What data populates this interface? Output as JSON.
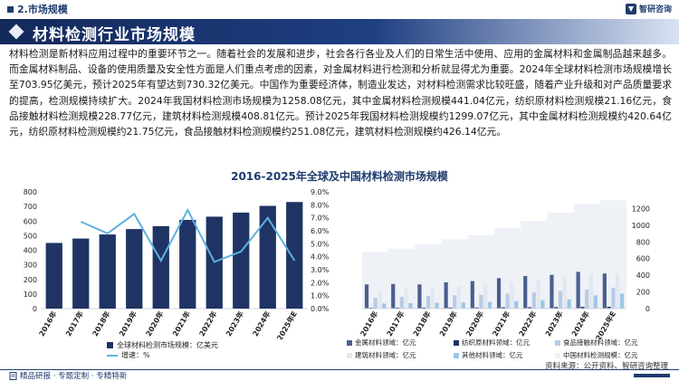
{
  "header": {
    "section": "2.市场规模",
    "logo_text": "智研咨询",
    "title": "材料检测行业市场规模"
  },
  "body_text": "材料检测是新材料应用过程中的重要环节之一。随着社会的发展和进步，社会各行各业及人们的日常生活中使用、应用的金属材料和金属制品越来越多。而金属材料制品、设备的使用质量及安全性方面是人们重点考虑的因素，对金属材料进行检测和分析就显得尤为重要。2024年全球材料检测市场规模增长至703.95亿美元，预计2025年有望达到730.32亿美元。中国作为重要经济体，制造业发达，对材料检测需求比较旺盛，随着产业升级和对产品质量要求的提高，检测规模持续扩大。2024年我国材料检测市场规模为1258.08亿元，其中金属材料检测规模441.04亿元，纺织原材料检测规模21.16亿元，食品接触材料检测规模228.77亿元，建筑材料检测规模408.81亿元。预计2025年我国材料检测规模约1299.07亿元，其中金属材料检测规模约420.64亿元，纺织原材料检测规模约21.75亿元，食品接触材料检测规模约251.08亿元，建筑材料检测规模约426.14亿元。",
  "chart_title": "2016-2025年全球及中国材料检测市场规模",
  "chart_data": [
    {
      "type": "bar",
      "categories": [
        "2016年",
        "2017年",
        "2018年",
        "2019年",
        "2020年",
        "2021年",
        "2022年",
        "2023年",
        "2024年",
        "2025年E"
      ],
      "series": [
        {
          "name": "全球材料检测市场规模：亿美元",
          "type": "bar",
          "axis": "left",
          "values": [
            450,
            480,
            508,
            545,
            565,
            608,
            630,
            658,
            703.95,
            730.32
          ]
        },
        {
          "name": "增速：%",
          "type": "line",
          "axis": "right",
          "values": [
            null,
            6.7,
            5.8,
            7.3,
            3.7,
            7.6,
            3.6,
            4.4,
            7.0,
            3.7
          ]
        }
      ],
      "ylim_left": [
        0,
        800
      ],
      "yticks_left": [
        "0",
        "100",
        "200",
        "300",
        "400",
        "500",
        "600",
        "700",
        "800"
      ],
      "ylim_right": [
        0,
        9
      ],
      "yticks_right": [
        "0.0%",
        "1.0%",
        "2.0%",
        "3.0%",
        "4.0%",
        "5.0%",
        "6.0%",
        "7.0%",
        "8.0%",
        "9.0%"
      ],
      "legend_position": "bottom",
      "grid": false
    },
    {
      "type": "bar",
      "categories": [
        "2016年",
        "2017年",
        "2018年",
        "2019年",
        "2020年",
        "2021年",
        "2022年",
        "2023年",
        "2024年",
        "2025年E"
      ],
      "series": [
        {
          "name": "金属材料领域：亿元",
          "values": [
            290,
            295,
            290,
            315,
            330,
            365,
            390,
            405,
            441.04,
            420.64
          ]
        },
        {
          "name": "纺织原材料领域：亿元",
          "values": [
            10,
            11,
            12,
            13,
            13,
            15,
            16,
            18,
            21.16,
            21.75
          ]
        },
        {
          "name": "食品接触材料领域：亿元",
          "values": [
            130,
            140,
            150,
            160,
            165,
            180,
            195,
            210,
            228.77,
            251.08
          ]
        },
        {
          "name": "建筑材料领域：亿元",
          "values": [
            220,
            235,
            250,
            270,
            290,
            320,
            350,
            380,
            408.81,
            426.14
          ]
        },
        {
          "name": "其他材料领域：亿元",
          "values": [
            60,
            65,
            70,
            75,
            80,
            90,
            100,
            110,
            158.3,
            179.46
          ]
        },
        {
          "name": "中国材料检测规模：亿元",
          "values": [
            680,
            720,
            770,
            830,
            880,
            970,
            1050,
            1150,
            1258.08,
            1299.07
          ]
        }
      ],
      "ylim": [
        0,
        1400
      ],
      "yticks": [
        "0",
        "200",
        "400",
        "600",
        "800",
        "1000",
        "1200"
      ],
      "legend_position": "bottom",
      "grid": false
    }
  ],
  "legend_left": {
    "bar_label": "全球材料检测市场规模：亿美元",
    "line_label": "增速：%"
  },
  "legend_right": [
    "金属材料领域：亿元",
    "纺织原材料领域：亿元",
    "食品接触材料领域：亿元",
    "建筑材料领域：亿元",
    "其他材料领域：亿元",
    "中国材料检测规模：亿元"
  ],
  "colors": {
    "primary": "#1f3464",
    "growth_line": "#5cb2e0",
    "metal": "#4a5f8f",
    "textile": "#1f3464",
    "food": "#b8cbe6",
    "building": "#e3e8f0",
    "other": "#9cc7e6",
    "total": "#eef1f6"
  },
  "source": "资料来源：公开资料、智研咨询整理",
  "footer": "精品研报 · 专题定制 · 专精特新"
}
